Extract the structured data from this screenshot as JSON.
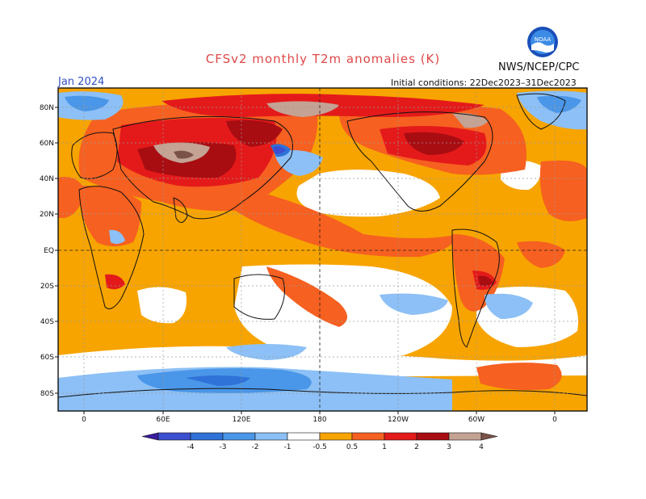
{
  "title": "CFSv2 monthly T2m anomalies (K)",
  "agency": "NWS/NCEP/CPC",
  "logo_text": "NOAA",
  "valid_month": "Jan 2024",
  "initial_conditions": "Initial conditions: 22Dec2023–31Dec2023",
  "map": {
    "lat_labels": [
      "80N",
      "60N",
      "40N",
      "20N",
      "EQ",
      "20S",
      "40S",
      "60S",
      "80S"
    ],
    "lon_labels": [
      "0",
      "60E",
      "120E",
      "180",
      "120W",
      "60W",
      "0"
    ]
  },
  "colorbar": {
    "labels": [
      "-4",
      "-3",
      "-2",
      "-1",
      "-0.5",
      "0.5",
      "1",
      "2",
      "3",
      "4"
    ],
    "colors": [
      "#3a1c9c",
      "#3c4fd0",
      "#2f72d8",
      "#4a96e8",
      "#8cc0f6",
      "#ffffff",
      "#f7a400",
      "#f66020",
      "#e41a1a",
      "#a80d12",
      "#c4a294",
      "#7b5248"
    ]
  },
  "colors": {
    "neutral": "#ffffff",
    "warm_05": "#f7a400",
    "warm_1": "#f66020",
    "warm_2": "#e41a1a",
    "warm_3": "#a80d12",
    "warm_4": "#c4a294",
    "cold_05": "#8cc0f6",
    "cold_1": "#4a96e8",
    "cold_2": "#2f72d8",
    "cold_3": "#3c4fd0"
  }
}
